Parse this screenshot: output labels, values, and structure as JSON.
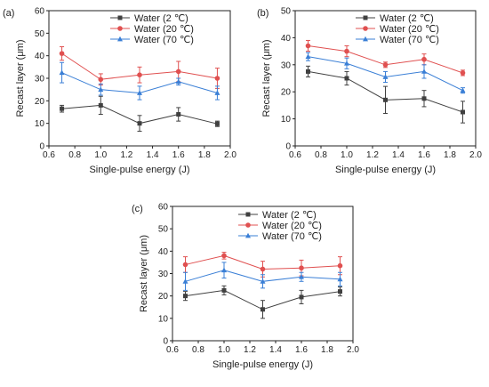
{
  "chart_data": [
    {
      "type": "line",
      "panel": "(a)",
      "xlabel": "Single-pulse energy (J)",
      "ylabel": "Recast layer (μm)",
      "xlim": [
        0.6,
        2.0
      ],
      "ylim": [
        0,
        60
      ],
      "xticks": [
        "0.6",
        "0.8",
        "1.0",
        "1.2",
        "1.4",
        "1.6",
        "1.8",
        "2.0"
      ],
      "yticks": [
        "0",
        "10",
        "20",
        "30",
        "40",
        "50",
        "60"
      ],
      "legend": "top-center",
      "x": [
        0.7,
        1.0,
        1.3,
        1.6,
        1.9
      ],
      "series": [
        {
          "name": "Water (2 ℃)",
          "color": "#404040",
          "marker": "square",
          "values": [
            16.5,
            18,
            10,
            14,
            9.8
          ],
          "errors": [
            1.5,
            4,
            3.5,
            3,
            1.2
          ]
        },
        {
          "name": "Water (20 ℃)",
          "color": "#e05050",
          "marker": "circle",
          "values": [
            41,
            29.5,
            31.5,
            33,
            30
          ],
          "errors": [
            3,
            2.5,
            3.5,
            4.5,
            4.5
          ]
        },
        {
          "name": "Water (70 ℃)",
          "color": "#3a7fd6",
          "marker": "triangle",
          "values": [
            32.5,
            25,
            23.5,
            28.5,
            23.5
          ],
          "errors": [
            4.5,
            2.5,
            3,
            1.5,
            3
          ]
        }
      ]
    },
    {
      "type": "line",
      "panel": "(b)",
      "xlabel": "Single-pulse energy (J)",
      "ylabel": "Recast layer (μm)",
      "xlim": [
        0.6,
        2.0
      ],
      "ylim": [
        0,
        50
      ],
      "xticks": [
        "0.6",
        "0.8",
        "1.0",
        "1.2",
        "1.4",
        "1.6",
        "1.8",
        "2.0"
      ],
      "yticks": [
        "0",
        "10",
        "20",
        "30",
        "40",
        "50"
      ],
      "legend": "top-center",
      "x": [
        0.7,
        1.0,
        1.3,
        1.6,
        1.9
      ],
      "series": [
        {
          "name": "Water (2 ℃)",
          "color": "#404040",
          "marker": "square",
          "values": [
            27.5,
            25,
            17,
            17.5,
            12.5
          ],
          "errors": [
            2,
            2.5,
            5,
            3,
            4
          ]
        },
        {
          "name": "Water (20 ℃)",
          "color": "#e05050",
          "marker": "circle",
          "values": [
            37,
            35,
            30,
            32,
            27
          ],
          "errors": [
            2,
            2,
            1,
            2,
            1
          ]
        },
        {
          "name": "Water (70 ℃)",
          "color": "#3a7fd6",
          "marker": "triangle",
          "values": [
            33,
            30.5,
            25.5,
            27.5,
            20.5
          ],
          "errors": [
            1.5,
            2,
            2,
            2.5,
            1
          ]
        }
      ]
    },
    {
      "type": "line",
      "panel": "(c)",
      "xlabel": "Single-pulse energy (J)",
      "ylabel": "Recast layer (μm)",
      "xlim": [
        0.6,
        2.0
      ],
      "ylim": [
        0,
        60
      ],
      "xticks": [
        "0.6",
        "0.8",
        "1.0",
        "1.2",
        "1.4",
        "1.6",
        "1.8",
        "2.0"
      ],
      "yticks": [
        "0",
        "10",
        "20",
        "30",
        "40",
        "50",
        "60"
      ],
      "legend": "top-center",
      "x": [
        0.7,
        1.0,
        1.3,
        1.6,
        1.9
      ],
      "series": [
        {
          "name": "Water (2 ℃)",
          "color": "#404040",
          "marker": "square",
          "values": [
            20,
            22.5,
            14,
            19.5,
            22
          ],
          "errors": [
            2,
            2,
            4,
            3,
            2
          ]
        },
        {
          "name": "Water (20 ℃)",
          "color": "#e05050",
          "marker": "circle",
          "values": [
            34,
            38,
            32,
            32.5,
            33.5
          ],
          "errors": [
            3.5,
            1.5,
            3.5,
            3.5,
            4
          ]
        },
        {
          "name": "Water (70 ℃)",
          "color": "#3a7fd6",
          "marker": "triangle",
          "values": [
            26.5,
            31.5,
            26.5,
            28.5,
            27.5
          ],
          "errors": [
            4,
            3.5,
            3,
            2,
            3
          ]
        }
      ]
    }
  ]
}
